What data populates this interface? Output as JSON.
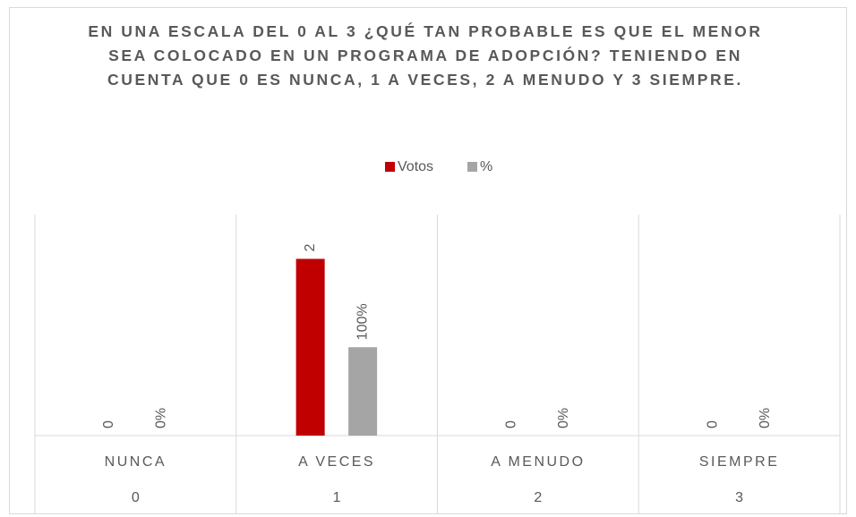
{
  "chart_data": {
    "type": "bar",
    "title": "EN UNA ESCALA DEL 0 AL 3 ¿QUÉ TAN PROBABLE ES QUE EL MENOR SEA COLOCADO EN UN PROGRAMA DE ADOPCIÓN? TENIENDO EN CUENTA QUE 0 ES NUNCA, 1 A VECES, 2 A MENUDO Y 3 SIEMPRE.",
    "categories": [
      "NUNCA",
      "A VECES",
      "A MENUDO",
      "SIEMPRE"
    ],
    "subcategories": [
      "0",
      "1",
      "2",
      "3"
    ],
    "series": [
      {
        "name": "Votos",
        "color": "#c00000",
        "values": [
          0,
          2,
          0,
          0
        ]
      },
      {
        "name": "%",
        "color": "#a5a5a5",
        "values": [
          0,
          1,
          0,
          0
        ],
        "value_labels": [
          "0%",
          "100%",
          "0%",
          "0%"
        ]
      }
    ],
    "ylim": [
      0,
      2.5
    ],
    "legend": "top"
  }
}
